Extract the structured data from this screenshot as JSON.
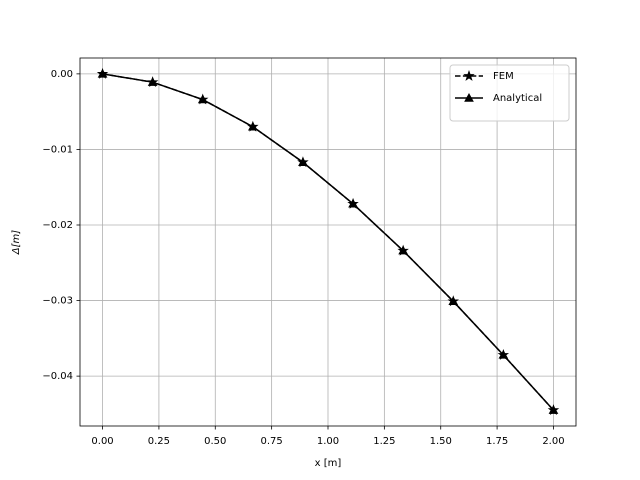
{
  "chart_data": {
    "type": "line",
    "x_label": "x [m]",
    "y_label": "Δ[m]",
    "x": [
      0,
      0.2222,
      0.4444,
      0.6667,
      0.8889,
      1.1111,
      1.3333,
      1.5556,
      1.7778,
      2.0
    ],
    "series": [
      {
        "name": "FEM",
        "color": "#000000",
        "linestyle": "dashed",
        "marker": "star",
        "values": [
          0,
          -0.0011,
          -0.0034,
          -0.007,
          -0.0117,
          -0.0172,
          -0.0234,
          -0.0301,
          -0.0372,
          -0.0445
        ]
      },
      {
        "name": "Analytical",
        "color": "#000000",
        "linestyle": "solid",
        "marker": "triangle",
        "values": [
          0,
          -0.0011,
          -0.0034,
          -0.007,
          -0.0117,
          -0.0172,
          -0.0234,
          -0.0301,
          -0.0372,
          -0.0445
        ]
      }
    ],
    "xlim": [
      -0.1,
      2.1
    ],
    "ylim": [
      -0.0466,
      0.0021
    ],
    "xticks": [
      {
        "value": 0,
        "label": "0.00"
      },
      {
        "value": 0.25,
        "label": "0.25"
      },
      {
        "value": 0.5,
        "label": "0.50"
      },
      {
        "value": 0.75,
        "label": "0.75"
      },
      {
        "value": 1.0,
        "label": "1.00"
      },
      {
        "value": 1.25,
        "label": "1.25"
      },
      {
        "value": 1.5,
        "label": "1.50"
      },
      {
        "value": 1.75,
        "label": "1.75"
      },
      {
        "value": 2.0,
        "label": "2.00"
      }
    ],
    "yticks": [
      {
        "value": 0,
        "label": "0.00"
      },
      {
        "value": -0.01,
        "label": "−0.01"
      },
      {
        "value": -0.02,
        "label": "−0.02"
      },
      {
        "value": -0.03,
        "label": "−0.03"
      },
      {
        "value": -0.04,
        "label": "−0.04"
      }
    ],
    "grid": true,
    "legend": "upper right"
  }
}
